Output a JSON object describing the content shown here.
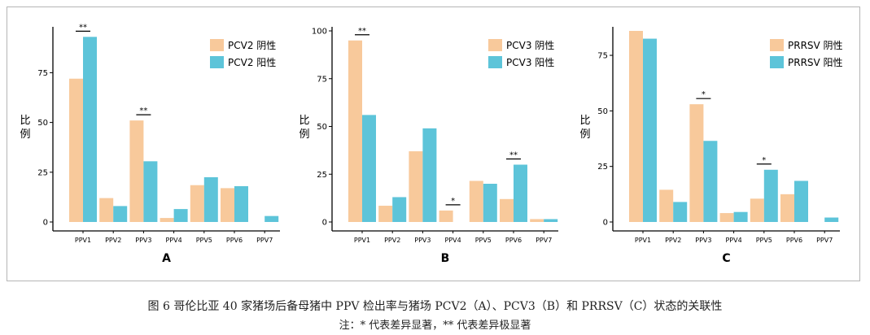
{
  "colors": {
    "neg": "#f8c99b",
    "pos": "#5dc4d9",
    "axis": "#000000",
    "text": "#000000"
  },
  "caption": {
    "main": "图 6 哥伦比亚 40 家猪场后备母猪中 PPV 检出率与猪场 PCV2（A）、PCV3（B）和 PRRSV（C）状态的关联性",
    "note": "注：* 代表差异显著，** 代表差异极显著"
  },
  "chart_data": [
    {
      "type": "bar",
      "panel": "A",
      "ylabel": "比例",
      "categories": [
        "PPV1",
        "PPV2",
        "PPV3",
        "PPV4",
        "PPV5",
        "PPV6",
        "PPV7"
      ],
      "yticks": [
        0,
        25,
        50,
        75
      ],
      "ylim": [
        0,
        96
      ],
      "legend": "top-right",
      "series": [
        {
          "name": "PCV2 阴性",
          "values": [
            72,
            12,
            51,
            2,
            18.5,
            17,
            0
          ]
        },
        {
          "name": "PCV2 阳性",
          "values": [
            93,
            8,
            30.5,
            6.5,
            22.5,
            18,
            3
          ]
        }
      ],
      "annotations": [
        {
          "category": "PPV1",
          "label": "**"
        },
        {
          "category": "PPV3",
          "label": "**"
        }
      ]
    },
    {
      "type": "bar",
      "panel": "B",
      "ylabel": "比例",
      "categories": [
        "PPV1",
        "PPV2",
        "PPV3",
        "PPV4",
        "PPV5",
        "PPV6",
        "PPV7"
      ],
      "yticks": [
        0,
        25,
        50,
        75,
        100
      ],
      "ylim": [
        0,
        100
      ],
      "legend": "top-right",
      "series": [
        {
          "name": "PCV3 阴性",
          "values": [
            95,
            8.5,
            37,
            6,
            21.5,
            12,
            1.5
          ]
        },
        {
          "name": "PCV3 阳性",
          "values": [
            56,
            13,
            49,
            0,
            20,
            30,
            1.5
          ]
        }
      ],
      "annotations": [
        {
          "category": "PPV1",
          "label": "**"
        },
        {
          "category": "PPV4",
          "label": "*"
        },
        {
          "category": "PPV6",
          "label": "**"
        }
      ]
    },
    {
      "type": "bar",
      "panel": "C",
      "ylabel": "比例",
      "categories": [
        "PPV1",
        "PPV2",
        "PPV3",
        "PPV4",
        "PPV5",
        "PPV6",
        "PPV7"
      ],
      "yticks": [
        0,
        25,
        50,
        75
      ],
      "ylim": [
        0,
        86
      ],
      "legend": "top-right",
      "series": [
        {
          "name": "PRRSV 阴性",
          "values": [
            86,
            14.5,
            53,
            4,
            10.5,
            12.5,
            0
          ]
        },
        {
          "name": "PRRSV 阳性",
          "values": [
            82.5,
            9,
            36.5,
            4.5,
            23.5,
            18.5,
            2
          ]
        }
      ],
      "annotations": [
        {
          "category": "PPV3",
          "label": "*"
        },
        {
          "category": "PPV5",
          "label": "*"
        }
      ]
    }
  ]
}
